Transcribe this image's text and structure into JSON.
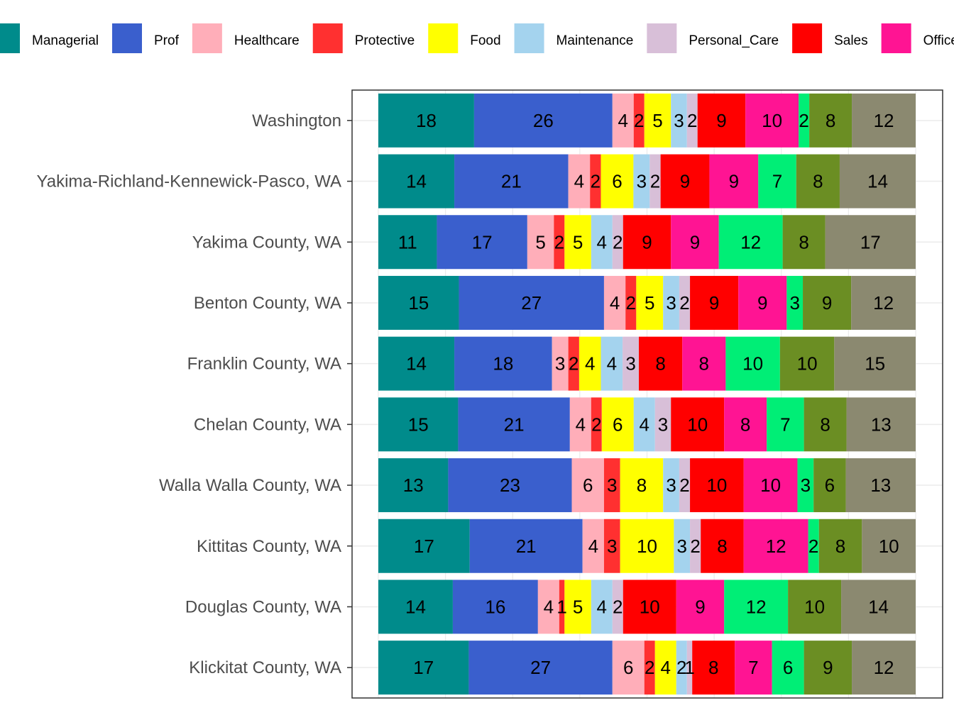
{
  "chart_data": {
    "type": "bar",
    "orientation": "horizontal",
    "stacked": true,
    "normalized": true,
    "legend_position": "top",
    "grid": true,
    "title": "",
    "xlabel": "",
    "ylabel": "",
    "categories": [
      "Washington",
      "Yakima-Richland-Kennewick-Pasco, WA",
      "Yakima County, WA",
      "Benton County, WA",
      "Franklin County, WA",
      "Chelan County, WA",
      "Walla Walla County, WA",
      "Kittitas County, WA",
      "Douglas County, WA",
      "Klickitat County, WA"
    ],
    "series": [
      {
        "name": "Managerial",
        "color": "#008B8B",
        "values": [
          18,
          14,
          11,
          15,
          14,
          15,
          13,
          17,
          14,
          17
        ]
      },
      {
        "name": "Prof",
        "color": "#3A5FCD",
        "values": [
          26,
          21,
          17,
          27,
          18,
          21,
          23,
          21,
          16,
          27
        ]
      },
      {
        "name": "Healthcare",
        "color": "#FFAEB9",
        "values": [
          4,
          4,
          5,
          4,
          3,
          4,
          6,
          4,
          4,
          6
        ]
      },
      {
        "name": "Protective",
        "color": "#FF3030",
        "values": [
          2,
          2,
          2,
          2,
          2,
          2,
          3,
          3,
          1,
          2
        ]
      },
      {
        "name": "Food",
        "color": "#FFFF00",
        "values": [
          5,
          6,
          5,
          5,
          4,
          6,
          8,
          10,
          5,
          4
        ]
      },
      {
        "name": "Maintenance",
        "color": "#A4D3EE",
        "values": [
          3,
          3,
          4,
          3,
          4,
          4,
          3,
          3,
          4,
          2
        ]
      },
      {
        "name": "Personal_Care",
        "color": "#D8BFD8",
        "values": [
          2,
          2,
          2,
          2,
          3,
          3,
          2,
          2,
          2,
          1
        ]
      },
      {
        "name": "Sales",
        "color": "#FF0000",
        "values": [
          9,
          9,
          9,
          9,
          8,
          10,
          10,
          8,
          10,
          8
        ]
      },
      {
        "name": "Office",
        "color": "#FF1493",
        "values": [
          10,
          9,
          9,
          9,
          8,
          8,
          10,
          12,
          9,
          7
        ]
      },
      {
        "name": "",
        "color": "#00EE76",
        "values": [
          2,
          7,
          12,
          3,
          10,
          7,
          3,
          2,
          12,
          6
        ]
      },
      {
        "name": "",
        "color": "#6B8E23",
        "values": [
          8,
          8,
          8,
          9,
          10,
          8,
          6,
          8,
          10,
          9
        ]
      },
      {
        "name": "",
        "color": "#8B8970",
        "values": [
          12,
          14,
          17,
          12,
          15,
          13,
          13,
          10,
          14,
          12
        ]
      }
    ]
  }
}
